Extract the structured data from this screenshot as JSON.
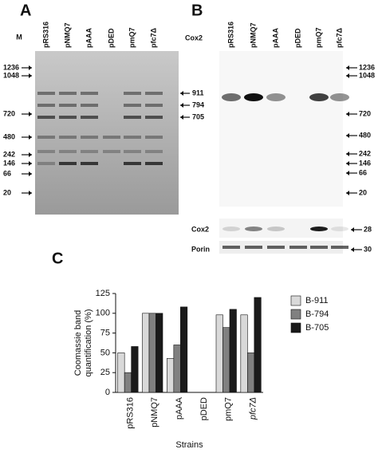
{
  "panel_a": {
    "label": "A",
    "marker_label": "M",
    "lanes": [
      "pRS316",
      "pNMQ7",
      "pAAA",
      "pDED",
      "pmQ7",
      "pfc7Δ"
    ],
    "left_markers": [
      "1236",
      "1048",
      "720",
      "480",
      "242",
      "146",
      "66",
      "20"
    ],
    "right_markers": [
      "911",
      "794",
      "705"
    ]
  },
  "panel_b": {
    "label": "B",
    "blot_label": "Cox2",
    "lanes": [
      "pRS316",
      "pNMQ7",
      "pAAA",
      "pDED",
      "pmQ7",
      "pfc7Δ"
    ],
    "right_markers": [
      "1236",
      "1048",
      "720",
      "480",
      "242",
      "146",
      "66",
      "20"
    ],
    "strips": [
      {
        "label": "Cox2",
        "marker": "28"
      },
      {
        "label": "Porin",
        "marker": "30"
      }
    ]
  },
  "chart_data": {
    "type": "bar",
    "panel_label": "C",
    "y_label": [
      "Coomassie band",
      "quantification (%)"
    ],
    "x_label": "Strains",
    "categories": [
      "pRS316",
      "pNMQ7",
      "pAAA",
      "pDED",
      "pmQ7",
      "pfc7Δ"
    ],
    "series": [
      {
        "name": "B-911",
        "color": "#d9d9d9",
        "values": [
          50,
          100,
          43,
          0,
          98,
          98
        ]
      },
      {
        "name": "B-794",
        "color": "#808080",
        "values": [
          25,
          100,
          60,
          0,
          82,
          50
        ]
      },
      {
        "name": "B-705",
        "color": "#1a1a1a",
        "values": [
          58,
          100,
          108,
          0,
          105,
          120
        ]
      }
    ],
    "ylim": [
      0,
      125
    ],
    "yticks": [
      0,
      25,
      50,
      75,
      100,
      125
    ]
  }
}
